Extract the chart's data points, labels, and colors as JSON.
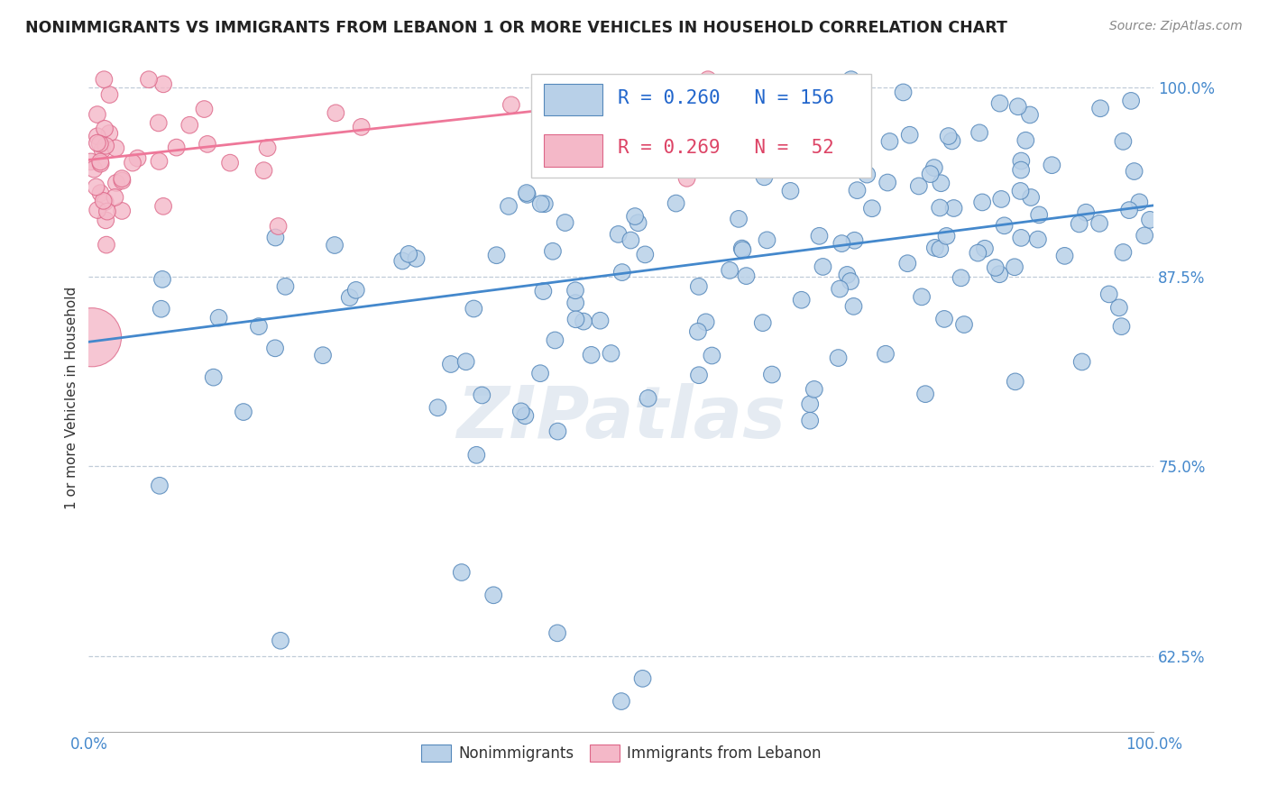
{
  "title": "NONIMMIGRANTS VS IMMIGRANTS FROM LEBANON 1 OR MORE VEHICLES IN HOUSEHOLD CORRELATION CHART",
  "source": "Source: ZipAtlas.com",
  "ylabel": "1 or more Vehicles in Household",
  "xlim": [
    0.0,
    1.0
  ],
  "ylim": [
    0.575,
    1.015
  ],
  "yticks": [
    0.625,
    0.75,
    0.875,
    1.0
  ],
  "ytick_labels": [
    "62.5%",
    "75.0%",
    "87.5%",
    "100.0%"
  ],
  "xtick_labels_ends": [
    "0.0%",
    "100.0%"
  ],
  "blue_color": "#b8d0e8",
  "pink_color": "#f4b8c8",
  "blue_edge": "#5588bb",
  "pink_edge": "#dd6688",
  "trend_blue": "#4488cc",
  "trend_pink": "#ee7799",
  "legend_blue_R": "0.260",
  "legend_blue_N": "156",
  "legend_pink_R": "0.269",
  "legend_pink_N": " 52",
  "watermark": "ZIPatlas",
  "blue_trend_x0": 0.0,
  "blue_trend_y0": 0.832,
  "blue_trend_x1": 1.0,
  "blue_trend_y1": 0.922,
  "pink_trend_x0": 0.0,
  "pink_trend_y0": 0.952,
  "pink_trend_x1": 0.65,
  "pink_trend_y1": 1.002
}
